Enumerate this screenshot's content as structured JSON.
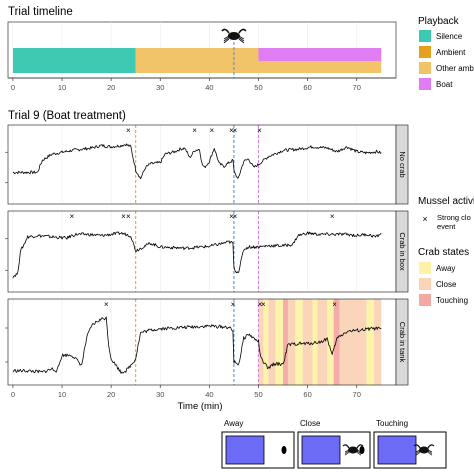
{
  "chart_data": [
    {
      "type": "bar",
      "title": "Trial timeline",
      "xlim": [
        -1,
        78
      ],
      "xticks": [
        0,
        10,
        20,
        30,
        40,
        50,
        60,
        70
      ],
      "segments": [
        {
          "playback": "Silence",
          "start": 0,
          "end": 25,
          "row": "full"
        },
        {
          "playback": "Other ambient",
          "start": 25,
          "end": 50,
          "row": "full"
        },
        {
          "playback": "Boat",
          "start": 50,
          "end": 75,
          "row": "upper"
        },
        {
          "playback": "Other ambient",
          "start": 50,
          "end": 75,
          "row": "lower"
        }
      ],
      "marker_at": 45,
      "legend": {
        "title": "Playback",
        "placement": "right",
        "items": [
          {
            "label": "Silence",
            "color": "#3ec9b2"
          },
          {
            "label": "Ambient",
            "color": "#e6a020"
          },
          {
            "label": "Other ambient",
            "color": "#f1c46a"
          },
          {
            "label": "Boat",
            "color": "#e07df2"
          }
        ]
      }
    },
    {
      "type": "line",
      "title": "Trial 9 (Boat treatment)",
      "xlabel": "Time (min)",
      "xlim": [
        -1,
        78
      ],
      "xticks": [
        0,
        10,
        20,
        30,
        40,
        50,
        60,
        70
      ],
      "vlines": [
        {
          "x": 25,
          "color": "#e6a020"
        },
        {
          "x": 45,
          "color": "#4a86d9"
        },
        {
          "x": 50,
          "color": "#d57ae6"
        }
      ],
      "panels": [
        {
          "label": "No crab",
          "trace": [
            [
              0,
              0.42
            ],
            [
              5,
              0.42
            ],
            [
              6,
              0.62
            ],
            [
              8,
              0.72
            ],
            [
              12,
              0.78
            ],
            [
              16,
              0.82
            ],
            [
              18,
              0.86
            ],
            [
              20,
              0.84
            ],
            [
              22,
              0.86
            ],
            [
              23,
              0.88
            ],
            [
              24,
              0.84
            ],
            [
              25,
              0.46
            ],
            [
              26,
              0.32
            ],
            [
              27,
              0.5
            ],
            [
              28,
              0.56
            ],
            [
              30,
              0.58
            ],
            [
              31,
              0.72
            ],
            [
              33,
              0.76
            ],
            [
              34,
              0.8
            ],
            [
              35,
              0.82
            ],
            [
              36,
              0.66
            ],
            [
              37,
              0.78
            ],
            [
              38,
              0.8
            ],
            [
              38.5,
              0.56
            ],
            [
              39,
              0.5
            ],
            [
              40,
              0.6
            ],
            [
              41,
              0.82
            ],
            [
              42,
              0.56
            ],
            [
              43,
              0.52
            ],
            [
              44,
              0.58
            ],
            [
              44.8,
              0.62
            ],
            [
              45,
              0.46
            ],
            [
              45.8,
              0.3
            ],
            [
              46.5,
              0.48
            ],
            [
              47,
              0.6
            ],
            [
              48,
              0.64
            ],
            [
              49,
              0.5
            ],
            [
              50,
              0.55
            ],
            [
              52,
              0.68
            ],
            [
              55,
              0.78
            ],
            [
              58,
              0.8
            ],
            [
              61,
              0.84
            ],
            [
              64,
              0.82
            ],
            [
              66,
              0.76
            ],
            [
              68,
              0.84
            ],
            [
              70,
              0.76
            ],
            [
              72,
              0.74
            ],
            [
              74,
              0.76
            ],
            [
              75,
              0.74
            ]
          ],
          "events": [
            23.5,
            37,
            40.5,
            44.5,
            45.2,
            50.2
          ]
        },
        {
          "label": "Crab in box",
          "trace": [
            [
              0,
              0.15
            ],
            [
              1,
              0.2
            ],
            [
              1.5,
              0.55
            ],
            [
              2,
              0.62
            ],
            [
              3,
              0.78
            ],
            [
              5,
              0.8
            ],
            [
              8,
              0.78
            ],
            [
              11,
              0.76
            ],
            [
              12,
              0.8
            ],
            [
              13,
              0.82
            ],
            [
              15,
              0.82
            ],
            [
              18,
              0.8
            ],
            [
              22,
              0.84
            ],
            [
              24,
              0.8
            ],
            [
              25,
              0.56
            ],
            [
              26,
              0.6
            ],
            [
              28,
              0.68
            ],
            [
              30,
              0.62
            ],
            [
              35,
              0.6
            ],
            [
              40,
              0.63
            ],
            [
              44,
              0.7
            ],
            [
              44.8,
              0.68
            ],
            [
              45,
              0.3
            ],
            [
              45.5,
              0.22
            ],
            [
              46,
              0.24
            ],
            [
              47,
              0.58
            ],
            [
              48,
              0.62
            ],
            [
              50,
              0.62
            ],
            [
              52,
              0.64
            ],
            [
              55,
              0.64
            ],
            [
              57,
              0.66
            ],
            [
              58,
              0.8
            ],
            [
              60,
              0.84
            ],
            [
              62,
              0.82
            ],
            [
              65,
              0.82
            ],
            [
              68,
              0.82
            ],
            [
              70,
              0.8
            ],
            [
              72,
              0.82
            ],
            [
              74,
              0.78
            ],
            [
              75,
              0.84
            ]
          ],
          "events": [
            12,
            22.5,
            23.5,
            44.5,
            45.2,
            65
          ]
        },
        {
          "label": "Crab in tank",
          "trace": [
            [
              0,
              0.12
            ],
            [
              3,
              0.12
            ],
            [
              6,
              0.1
            ],
            [
              8,
              0.15
            ],
            [
              9,
              0.12
            ],
            [
              10,
              0.35
            ],
            [
              12,
              0.35
            ],
            [
              13,
              0.28
            ],
            [
              14,
              0.2
            ],
            [
              15,
              0.6
            ],
            [
              16,
              0.78
            ],
            [
              17,
              0.84
            ],
            [
              18,
              0.88
            ],
            [
              19,
              0.9
            ],
            [
              19.5,
              0.5
            ],
            [
              20,
              0.3
            ],
            [
              21,
              0.2
            ],
            [
              22,
              0.1
            ],
            [
              23,
              0.12
            ],
            [
              24,
              0.2
            ],
            [
              25,
              0.3
            ],
            [
              25.5,
              0.5
            ],
            [
              26,
              0.68
            ],
            [
              28,
              0.72
            ],
            [
              30,
              0.74
            ],
            [
              35,
              0.76
            ],
            [
              40,
              0.78
            ],
            [
              44,
              0.76
            ],
            [
              44.8,
              0.7
            ],
            [
              45,
              0.25
            ],
            [
              46,
              0.22
            ],
            [
              47,
              0.6
            ],
            [
              48,
              0.66
            ],
            [
              49,
              0.6
            ],
            [
              50,
              0.55
            ],
            [
              50.5,
              0.3
            ],
            [
              52,
              0.15
            ],
            [
              53,
              0.22
            ],
            [
              55,
              0.22
            ],
            [
              56,
              0.5
            ],
            [
              58,
              0.52
            ],
            [
              60,
              0.52
            ],
            [
              63,
              0.55
            ],
            [
              64,
              0.6
            ],
            [
              65,
              0.35
            ],
            [
              66,
              0.6
            ],
            [
              68,
              0.7
            ],
            [
              71,
              0.72
            ],
            [
              73,
              0.74
            ],
            [
              75,
              0.74
            ]
          ],
          "events": [
            19,
            44.8,
            50.3,
            51,
            65.5
          ],
          "crab_state_bands": [
            [
              50,
              51,
              "Close"
            ],
            [
              51,
              52,
              "Away"
            ],
            [
              52,
              53.5,
              "Close"
            ],
            [
              53.5,
              55,
              "Away"
            ],
            [
              55,
              56,
              "Touching"
            ],
            [
              56,
              57.5,
              "Close"
            ],
            [
              57.5,
              59,
              "Away"
            ],
            [
              59,
              61,
              "Close"
            ],
            [
              61,
              62,
              "Away"
            ],
            [
              62,
              64,
              "Close"
            ],
            [
              64,
              65.3,
              "Away"
            ],
            [
              65.3,
              66.5,
              "Touching"
            ],
            [
              66.5,
              72,
              "Close"
            ],
            [
              72,
              73.5,
              "Away"
            ],
            [
              73.5,
              75,
              "Close"
            ]
          ]
        }
      ],
      "legends": [
        {
          "title": "Mussel activity",
          "items": [
            {
              "symbol": "×",
              "label": "Strong clo event"
            }
          ]
        },
        {
          "title": "Crab states",
          "items": [
            {
              "label": "Away",
              "color": "#fdf3a8"
            },
            {
              "label": "Close",
              "color": "#fbd3b6"
            },
            {
              "label": "Touching",
              "color": "#f4a8a4"
            }
          ]
        }
      ]
    }
  ],
  "state_examples": [
    {
      "label": "Away"
    },
    {
      "label": "Close"
    },
    {
      "label": "Touching"
    }
  ],
  "colors": {
    "panel_strip": "#d9d9d9",
    "grid": "#ebebeb",
    "example_fill": "#6b6bf5"
  }
}
